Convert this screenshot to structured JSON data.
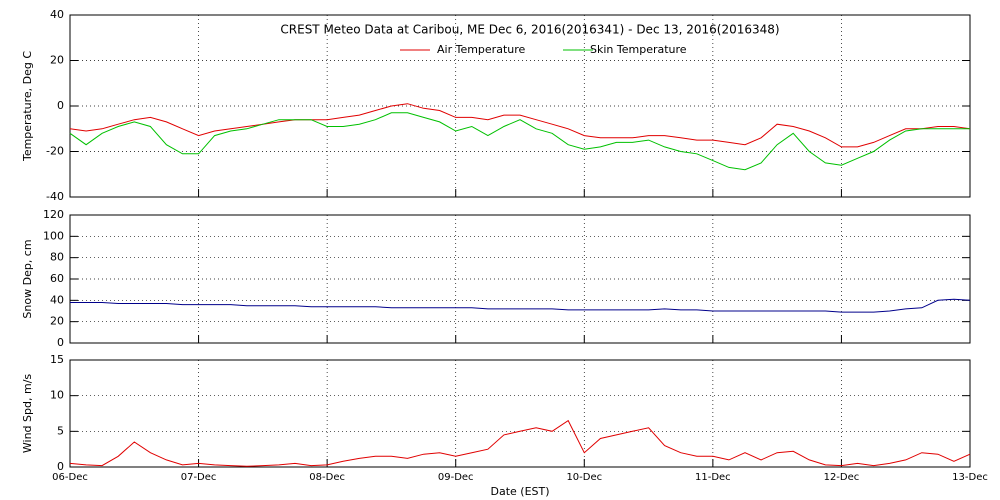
{
  "chart_data": [
    {
      "type": "line",
      "title": "CREST Meteo Data at Caribou, ME   Dec  6, 2016(2016341) - Dec 13, 2016(2016348)",
      "ylabel": "Temperature, Deg C",
      "ylim": [
        -40,
        40
      ],
      "yticks": [
        -40,
        -20,
        0,
        20,
        40
      ],
      "grid": true,
      "legend": "top",
      "series": [
        {
          "name": "Air Temperature",
          "color": "#e00000",
          "values": [
            -10,
            -11,
            -10,
            -8,
            -6,
            -5,
            -7,
            -10,
            -13,
            -11,
            -10,
            -9,
            -8,
            -7,
            -6,
            -6,
            -6,
            -5,
            -4,
            -2,
            0,
            1,
            -1,
            -2,
            -5,
            -5,
            -6,
            -4,
            -4,
            -6,
            -8,
            -10,
            -13,
            -14,
            -14,
            -14,
            -13,
            -13,
            -14,
            -15,
            -15,
            -16,
            -17,
            -14,
            -8,
            -9,
            -11,
            -14,
            -18,
            -18,
            -16,
            -13,
            -10,
            -10,
            -9,
            -9,
            -10
          ]
        },
        {
          "name": "Skin Temperature",
          "color": "#00c000",
          "values": [
            -12,
            -17,
            -12,
            -9,
            -7,
            -9,
            -17,
            -21,
            -21,
            -13,
            -11,
            -10,
            -8,
            -6,
            -6,
            -6,
            -9,
            -9,
            -8,
            -6,
            -3,
            -3,
            -5,
            -7,
            -11,
            -9,
            -13,
            -9,
            -6,
            -10,
            -12,
            -17,
            -19,
            -18,
            -16,
            -16,
            -15,
            -18,
            -20,
            -21,
            -24,
            -27,
            -28,
            -25,
            -17,
            -12,
            -20,
            -25,
            -26,
            -23,
            -20,
            -15,
            -11,
            -10,
            -10,
            -10,
            -10
          ]
        }
      ]
    },
    {
      "type": "line",
      "ylabel": "Snow Dep, cm",
      "ylim": [
        0,
        120
      ],
      "yticks": [
        0,
        20,
        40,
        60,
        80,
        100,
        120
      ],
      "grid": true,
      "series": [
        {
          "color": "#00008b",
          "values": [
            38,
            38,
            38,
            37,
            37,
            37,
            37,
            36,
            36,
            36,
            36,
            35,
            35,
            35,
            35,
            34,
            34,
            34,
            34,
            34,
            33,
            33,
            33,
            33,
            33,
            33,
            32,
            32,
            32,
            32,
            32,
            31,
            31,
            31,
            31,
            31,
            31,
            32,
            31,
            31,
            30,
            30,
            30,
            30,
            30,
            30,
            30,
            30,
            29,
            29,
            29,
            30,
            32,
            33,
            40,
            41,
            40
          ]
        }
      ]
    },
    {
      "type": "line",
      "ylabel": "Wind Spd, m/s",
      "xlabel": "Date (EST)",
      "ylim": [
        0,
        15
      ],
      "yticks": [
        0,
        5,
        10,
        15
      ],
      "grid": true,
      "categories": [
        "06-Dec",
        null,
        null,
        null,
        null,
        null,
        null,
        null,
        "07-Dec",
        null,
        null,
        null,
        null,
        null,
        null,
        null,
        "08-Dec",
        null,
        null,
        null,
        null,
        null,
        null,
        null,
        "09-Dec",
        null,
        null,
        null,
        null,
        null,
        null,
        null,
        "10-Dec",
        null,
        null,
        null,
        null,
        null,
        null,
        null,
        "11-Dec",
        null,
        null,
        null,
        null,
        null,
        null,
        null,
        "12-Dec",
        null,
        null,
        null,
        null,
        null,
        null,
        null,
        "13-Dec"
      ],
      "series": [
        {
          "color": "#e00000",
          "values": [
            0.5,
            0.3,
            0.2,
            1.5,
            3.5,
            2,
            1,
            0.3,
            0.5,
            0.3,
            0.2,
            0.1,
            0.2,
            0.3,
            0.5,
            0.2,
            0.3,
            0.8,
            1.2,
            1.5,
            1.5,
            1.2,
            1.8,
            2,
            1.5,
            2,
            2.5,
            4.5,
            5,
            5.5,
            5,
            6.5,
            2,
            4,
            4.5,
            5,
            5.5,
            3,
            2,
            1.5,
            1.5,
            1,
            2,
            1,
            2,
            2.2,
            1,
            0.3,
            0.2,
            0.5,
            0.2,
            0.5,
            1,
            2,
            1.8,
            0.8,
            1.8
          ]
        }
      ]
    }
  ]
}
